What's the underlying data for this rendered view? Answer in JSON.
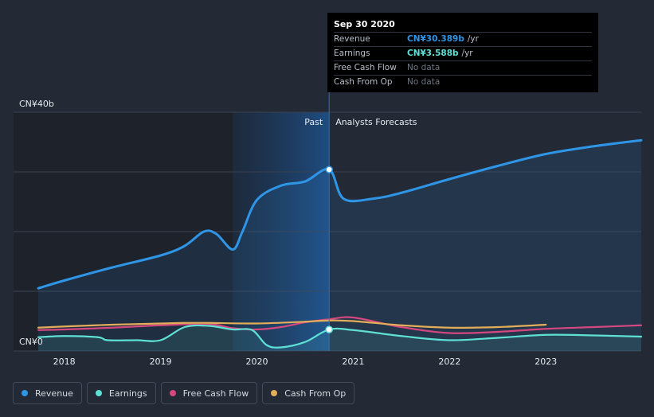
{
  "chart_data": {
    "type": "line",
    "y_top_label": "CN¥40b",
    "y_bottom_label": "CN¥0",
    "ylim": [
      0,
      40
    ],
    "xlim": [
      2017.73,
      2023.99
    ],
    "x_ticks": [
      {
        "value": 2018,
        "label": "2018"
      },
      {
        "value": 2019,
        "label": "2019"
      },
      {
        "value": 2020,
        "label": "2020"
      },
      {
        "value": 2021,
        "label": "2021"
      },
      {
        "value": 2022,
        "label": "2022"
      },
      {
        "value": 2023,
        "label": "2023"
      }
    ],
    "past_label": "Past",
    "forecast_label": "Analysts Forecasts",
    "divider_x": 2020.75,
    "highlight_start_x": 2019.75,
    "series": [
      {
        "name": "Revenue",
        "color": "#2f95e6",
        "points": [
          [
            2017.73,
            10.5
          ],
          [
            2018.0,
            11.8
          ],
          [
            2018.5,
            14.0
          ],
          [
            2019.0,
            16.0
          ],
          [
            2019.25,
            17.6
          ],
          [
            2019.45,
            20.0
          ],
          [
            2019.58,
            19.6
          ],
          [
            2019.75,
            17.0
          ],
          [
            2019.85,
            20.0
          ],
          [
            2020.0,
            25.3
          ],
          [
            2020.25,
            27.7
          ],
          [
            2020.5,
            28.4
          ],
          [
            2020.75,
            30.389
          ],
          [
            2020.9,
            25.5
          ],
          [
            2021.2,
            25.5
          ],
          [
            2021.5,
            26.5
          ],
          [
            2022.0,
            28.8
          ],
          [
            2022.5,
            31.0
          ],
          [
            2023.0,
            33.0
          ],
          [
            2023.5,
            34.3
          ],
          [
            2023.99,
            35.3
          ]
        ]
      },
      {
        "name": "Earnings",
        "color": "#5fe0d4",
        "points": [
          [
            2017.73,
            2.3
          ],
          [
            2018.0,
            2.5
          ],
          [
            2018.35,
            2.3
          ],
          [
            2018.45,
            1.8
          ],
          [
            2018.75,
            1.8
          ],
          [
            2019.0,
            1.8
          ],
          [
            2019.25,
            4.0
          ],
          [
            2019.5,
            4.2
          ],
          [
            2019.75,
            3.6
          ],
          [
            2019.95,
            3.5
          ],
          [
            2020.1,
            1.0
          ],
          [
            2020.25,
            0.6
          ],
          [
            2020.5,
            1.5
          ],
          [
            2020.75,
            3.588
          ],
          [
            2021.0,
            3.5
          ],
          [
            2021.5,
            2.5
          ],
          [
            2022.0,
            1.8
          ],
          [
            2022.5,
            2.2
          ],
          [
            2023.0,
            2.7
          ],
          [
            2023.5,
            2.6
          ],
          [
            2023.99,
            2.4
          ]
        ]
      },
      {
        "name": "Free Cash Flow",
        "color": "#d4477f",
        "points": [
          [
            2017.73,
            3.5
          ],
          [
            2018.0,
            3.6
          ],
          [
            2018.5,
            3.9
          ],
          [
            2019.0,
            4.3
          ],
          [
            2019.5,
            4.5
          ],
          [
            2019.75,
            3.8
          ],
          [
            2020.0,
            3.6
          ],
          [
            2020.25,
            4.0
          ],
          [
            2020.5,
            4.8
          ],
          [
            2020.75,
            5.3
          ],
          [
            2021.0,
            5.6
          ],
          [
            2021.5,
            4.0
          ],
          [
            2022.0,
            3.0
          ],
          [
            2022.5,
            3.2
          ],
          [
            2023.0,
            3.7
          ],
          [
            2023.5,
            4.0
          ],
          [
            2023.99,
            4.3
          ]
        ]
      },
      {
        "name": "Cash From Op",
        "color": "#e4ad5a",
        "points": [
          [
            2017.73,
            3.9
          ],
          [
            2018.0,
            4.1
          ],
          [
            2018.5,
            4.4
          ],
          [
            2019.0,
            4.6
          ],
          [
            2019.25,
            4.7
          ],
          [
            2019.5,
            4.7
          ],
          [
            2020.0,
            4.6
          ],
          [
            2020.5,
            4.9
          ],
          [
            2020.75,
            5.1
          ],
          [
            2021.0,
            5.0
          ],
          [
            2021.5,
            4.3
          ],
          [
            2022.0,
            3.9
          ],
          [
            2022.5,
            4.0
          ],
          [
            2023.0,
            4.4
          ]
        ]
      }
    ]
  },
  "tooltip": {
    "date": "Sep 30 2020",
    "rows": [
      {
        "label": "Revenue",
        "value": "CN¥30.389b",
        "unit": "/yr",
        "color": "#2f95e6"
      },
      {
        "label": "Earnings",
        "value": "CN¥3.588b",
        "unit": "/yr",
        "color": "#5fe0d4"
      },
      {
        "label": "Free Cash Flow",
        "value": "No data",
        "unit": ""
      },
      {
        "label": "Cash From Op",
        "value": "No data",
        "unit": ""
      }
    ]
  },
  "legend": [
    {
      "label": "Revenue",
      "color": "#2f95e6"
    },
    {
      "label": "Earnings",
      "color": "#5fe0d4"
    },
    {
      "label": "Free Cash Flow",
      "color": "#d4477f"
    },
    {
      "label": "Cash From Op",
      "color": "#e4ad5a"
    }
  ]
}
